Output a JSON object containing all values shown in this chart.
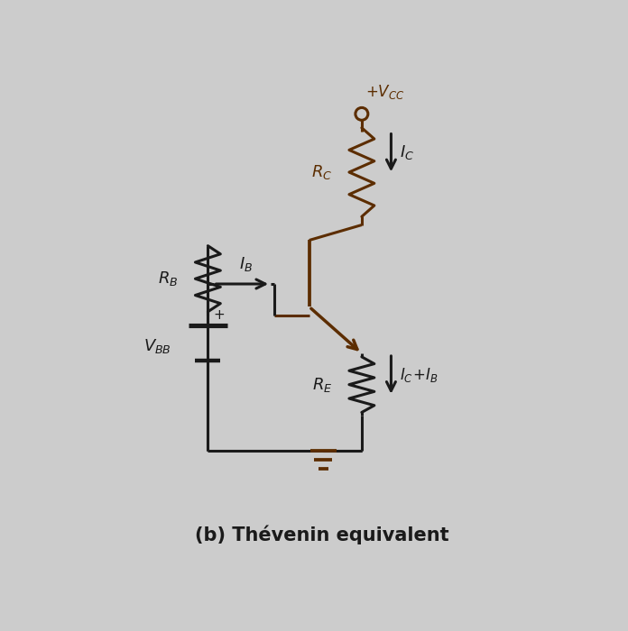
{
  "bg_color": "#cccccc",
  "circuit_color": "#1a1a1a",
  "brown_color": "#5C2D00",
  "title": "(b) Thévenin equivalent",
  "title_fontsize": 15,
  "title_fontstyle": "bold"
}
